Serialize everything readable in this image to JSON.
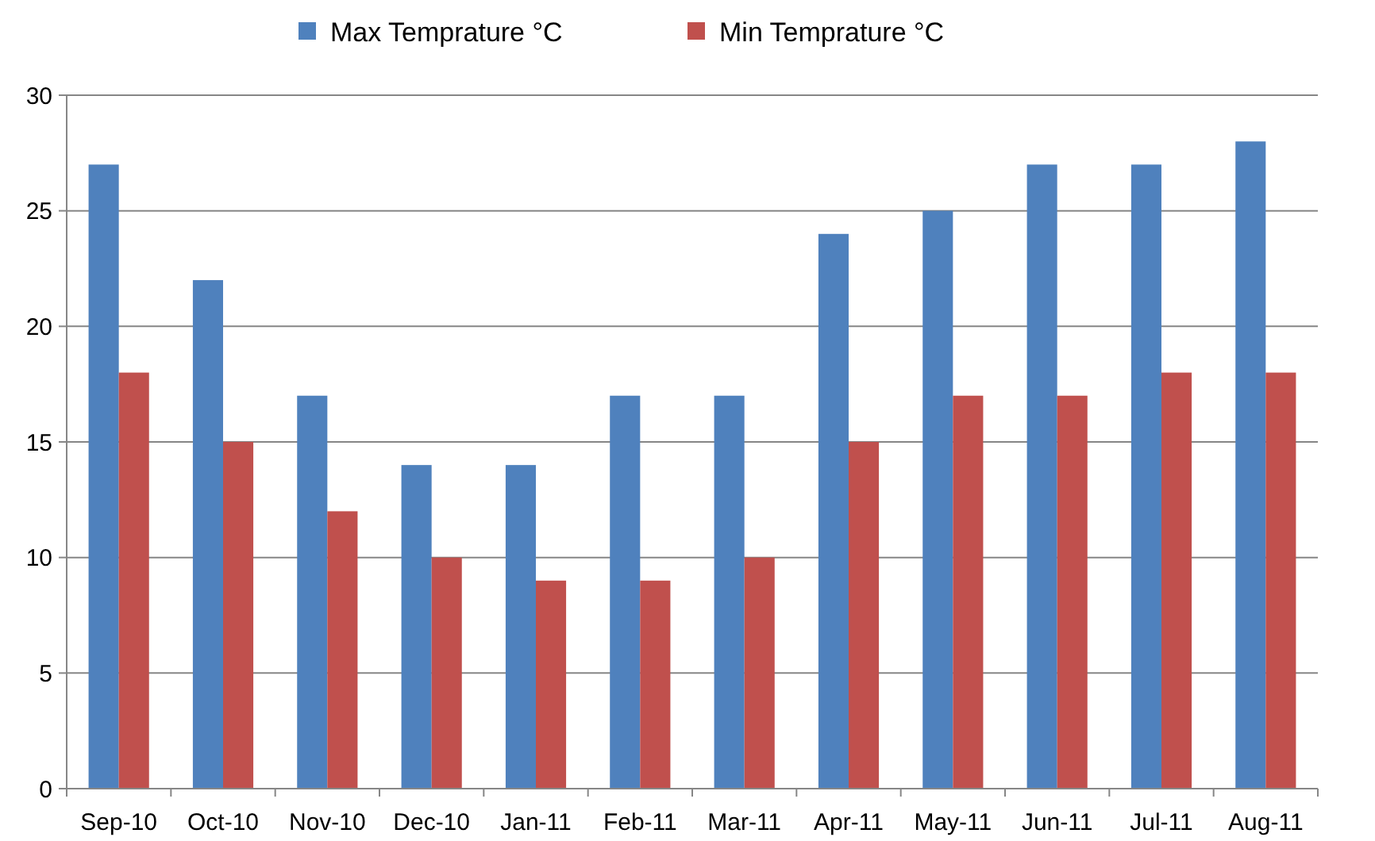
{
  "chart_data": {
    "type": "bar",
    "categories": [
      "Sep-10",
      "Oct-10",
      "Nov-10",
      "Dec-10",
      "Jan-11",
      "Feb-11",
      "Mar-11",
      "Apr-11",
      "May-11",
      "Jun-11",
      "Jul-11",
      "Aug-11"
    ],
    "series": [
      {
        "name": "Max Temprature °C",
        "color": "#4f81bd",
        "values": [
          27,
          22,
          17,
          14,
          14,
          17,
          17,
          24,
          25,
          27,
          27,
          28
        ]
      },
      {
        "name": "Min Temprature °C",
        "color": "#c0504d",
        "values": [
          18,
          15,
          12,
          10,
          9,
          9,
          10,
          15,
          17,
          17,
          18,
          18
        ]
      }
    ],
    "ylim": [
      0,
      30
    ],
    "yticks": [
      0,
      5,
      10,
      15,
      20,
      25,
      30
    ],
    "grid": "y",
    "legend": "top"
  }
}
